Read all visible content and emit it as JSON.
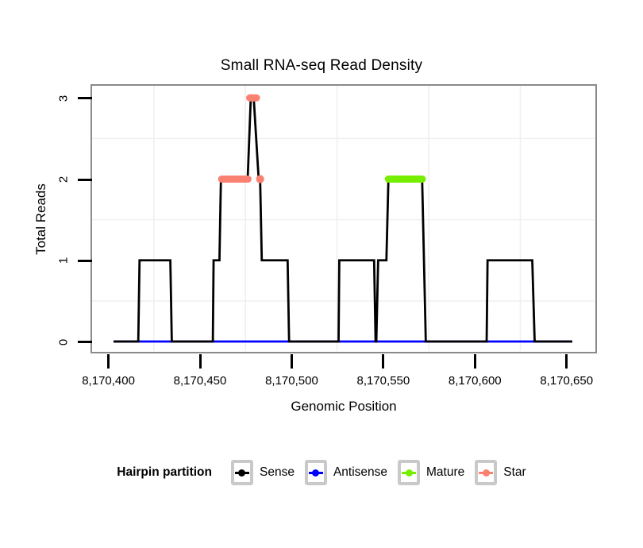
{
  "chart_data": {
    "type": "line",
    "title": "Small RNA-seq Read Density",
    "xlabel": "Genomic Position",
    "ylabel": "Total Reads",
    "xlim": [
      8170391.3,
      8170665.5
    ],
    "ylim": [
      -0.117,
      3.149
    ],
    "x_ticks": [
      {
        "value": 8170400,
        "label": "8,170,400"
      },
      {
        "value": 8170450,
        "label": "8,170,450"
      },
      {
        "value": 8170500,
        "label": "8,170,500"
      },
      {
        "value": 8170550,
        "label": "8,170,550"
      },
      {
        "value": 8170600,
        "label": "8,170,600"
      },
      {
        "value": 8170650,
        "label": "8,170,650"
      }
    ],
    "y_ticks": [
      {
        "value": 0,
        "label": "0"
      },
      {
        "value": 1,
        "label": "1"
      },
      {
        "value": 2,
        "label": "2"
      },
      {
        "value": 3,
        "label": "3"
      }
    ],
    "grid": {
      "on": true,
      "color": "#f0f0f0",
      "x_lines": [
        8170425,
        8170475,
        8170525,
        8170575,
        8170625
      ],
      "y_lines": [
        0.5,
        1.5,
        2.5
      ]
    },
    "series": [
      {
        "name": "Antisense",
        "color": "#0000ff",
        "type": "line",
        "line_width": 2.8,
        "points": [
          [
            8170403,
            0
          ],
          [
            8170653.3,
            0
          ]
        ]
      },
      {
        "name": "Sense",
        "color": "#000000",
        "type": "step-line",
        "line_width": 2.8,
        "points": [
          [
            8170403,
            0
          ],
          [
            8170416.5,
            0
          ],
          [
            8170417.2,
            1
          ],
          [
            8170434,
            1
          ],
          [
            8170434.8,
            0
          ],
          [
            8170457.2,
            0
          ],
          [
            8170457.6,
            1
          ],
          [
            8170460.8,
            1
          ],
          [
            8170461.6,
            2
          ],
          [
            8170476.2,
            2
          ],
          [
            8170477.9,
            3
          ],
          [
            8170479.5,
            3
          ],
          [
            8170482.2,
            2
          ],
          [
            8170483,
            2
          ],
          [
            8170483.9,
            1
          ],
          [
            8170498,
            1
          ],
          [
            8170498.8,
            0
          ],
          [
            8170525.8,
            0
          ],
          [
            8170526.2,
            1
          ],
          [
            8170545.2,
            1
          ],
          [
            8170546,
            0
          ],
          [
            8170546.4,
            0
          ],
          [
            8170547.4,
            1
          ],
          [
            8170551.9,
            1
          ],
          [
            8170553,
            2
          ],
          [
            8170571.4,
            2
          ],
          [
            8170573.4,
            0
          ],
          [
            8170606.6,
            0
          ],
          [
            8170607.1,
            1
          ],
          [
            8170631.5,
            1
          ],
          [
            8170632.8,
            0
          ],
          [
            8170653.3,
            0
          ]
        ]
      },
      {
        "name": "Mature",
        "color": "#76ee00",
        "type": "segments",
        "line_width": 9,
        "segments": [
          {
            "x1": 8170553,
            "x2": 8170571.5,
            "y": 2
          }
        ]
      },
      {
        "name": "Star",
        "color": "#fa8072",
        "type": "segments",
        "line_width": 9,
        "segments": [
          {
            "x1": 8170462,
            "x2": 8170476.4,
            "y": 2
          },
          {
            "x1": 8170483,
            "x2": 8170483,
            "y": 2
          },
          {
            "x1": 8170477.3,
            "x2": 8170481,
            "y": 3
          }
        ]
      }
    ],
    "legend": {
      "title": "Hairpin partition",
      "position": "bottom",
      "entries": [
        {
          "label": "Sense",
          "color": "#000000"
        },
        {
          "label": "Antisense",
          "color": "#0000ff"
        },
        {
          "label": "Mature",
          "color": "#76ee00"
        },
        {
          "label": "Star",
          "color": "#fa8072"
        }
      ]
    },
    "panel_border_color": "#8a8a8a",
    "background": "#ffffff"
  }
}
